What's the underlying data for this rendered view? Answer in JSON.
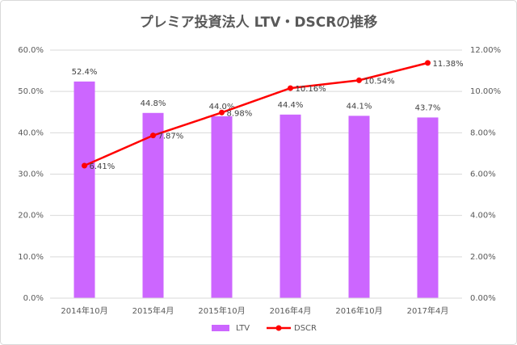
{
  "chart_data": {
    "type": "bar",
    "title": "プレミア投資法人 LTV・DSCRの推移",
    "categories": [
      "2014年10月",
      "2015年4月",
      "2015年10月",
      "2016年4月",
      "2016年10月",
      "2017年4月"
    ],
    "series": [
      {
        "name": "LTV",
        "color": "#cc66ff",
        "type": "bar",
        "values": [
          52.4,
          44.8,
          44.0,
          44.4,
          44.1,
          43.7
        ],
        "value_labels": [
          "52.4%",
          "44.8%",
          "44.0%",
          "44.4%",
          "44.1%",
          "43.7%"
        ]
      },
      {
        "name": "DSCR",
        "color": "#ff0000",
        "type": "line",
        "axis": "y2",
        "values": [
          6.41,
          7.87,
          8.98,
          10.16,
          10.54,
          11.38
        ],
        "value_labels": [
          "6.41%",
          "7.87%",
          "8.98%",
          "10.16%",
          "10.54%",
          "11.38%"
        ]
      }
    ],
    "ylim": [
      0,
      60
    ],
    "yticks": [
      {
        "value": 0,
        "label": "0.0%"
      },
      {
        "value": 10,
        "label": "10.0%"
      },
      {
        "value": 20,
        "label": "20.0%"
      },
      {
        "value": 30,
        "label": "30.0%"
      },
      {
        "value": 40,
        "label": "40.0%"
      },
      {
        "value": 50,
        "label": "50.0%"
      },
      {
        "value": 60,
        "label": "60.0%"
      }
    ],
    "y2lim": [
      0,
      12
    ],
    "y2ticks": [
      {
        "value": 0,
        "label": "0.00%"
      },
      {
        "value": 2,
        "label": "2.00%"
      },
      {
        "value": 4,
        "label": "4.00%"
      },
      {
        "value": 6,
        "label": "6.00%"
      },
      {
        "value": 8,
        "label": "8.00%"
      },
      {
        "value": 10,
        "label": "10.00%"
      },
      {
        "value": 12,
        "label": "12.00%"
      }
    ],
    "grid": true,
    "legend": "bottom"
  }
}
